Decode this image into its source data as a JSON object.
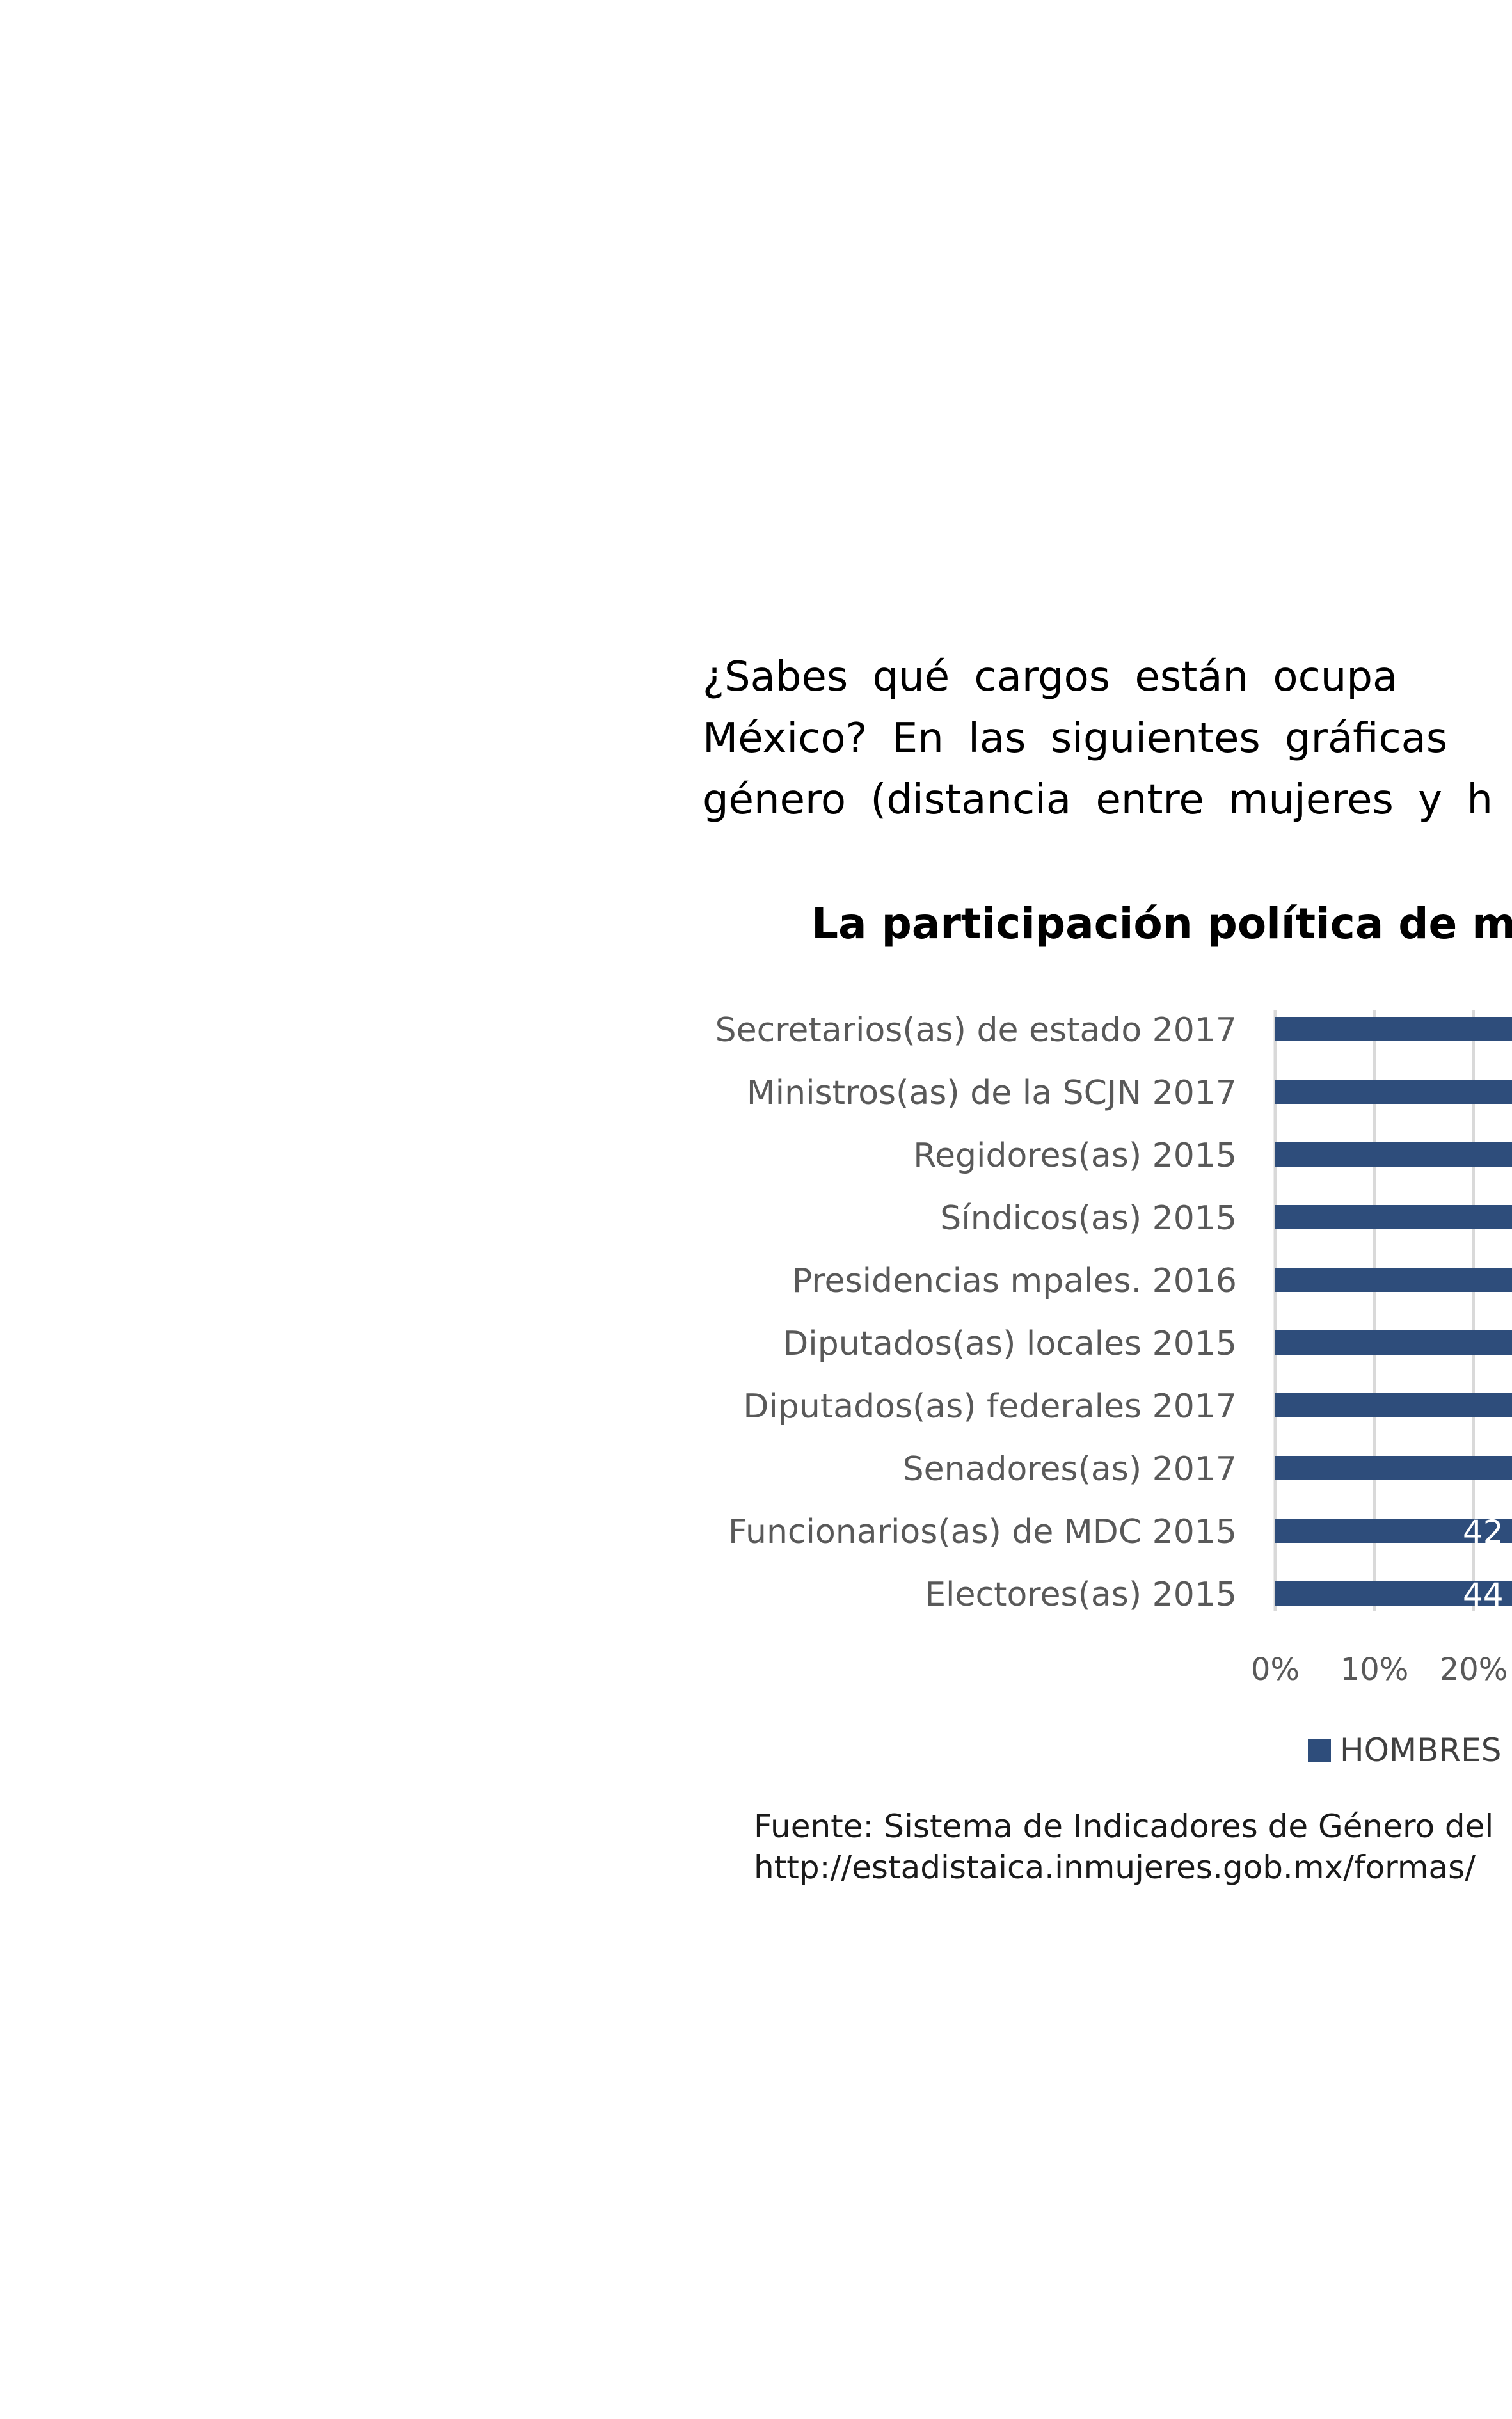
{
  "intro": {
    "lines": [
      "¿Sabes qué cargos están ocupa",
      "México? En las siguientes gráficas",
      "género (distancia entre mujeres y h"
    ]
  },
  "chart_data": {
    "type": "bar",
    "orientation": "horizontal",
    "title": "La participación política de m",
    "categories": [
      "Secretarios(as) de estado 2017",
      "Ministros(as) de la SCJN 2017",
      "Regidores(as) 2015",
      "Síndicos(as) 2015",
      "Presidencias mpales. 2016",
      "Diputados(as) locales 2015",
      "Diputados(as) federales 2017",
      "Senadores(as) 2017",
      "Funcionarios(as) de MDC 2015",
      "Electores(as) 2015"
    ],
    "series": [
      {
        "name": "HOMBRES",
        "color": "#2e4d7b",
        "values": [
          null,
          null,
          null,
          null,
          null,
          null,
          null,
          null,
          42,
          44
        ],
        "data_labels": [
          "",
          "",
          "",
          "",
          "",
          "",
          "",
          "",
          "42",
          "44"
        ]
      }
    ],
    "xtick_labels": [
      "0%",
      "10%",
      "20%"
    ],
    "xticks": [
      0,
      10,
      20
    ],
    "grid": true,
    "legend_position": "bottom"
  },
  "legend": {
    "items": [
      {
        "label": "HOMBRES",
        "color": "#2e4d7b"
      }
    ]
  },
  "source": {
    "lines": [
      "Fuente: Sistema de Indicadores de Género del",
      "http://estadistaica.inmujeres.gob.mx/formas/"
    ]
  },
  "colors": {
    "bar": "#2e4d7b",
    "grid": "#d9d9d9",
    "axis_text": "#595959",
    "category_text": "#595959",
    "data_label": "#ffffff"
  }
}
